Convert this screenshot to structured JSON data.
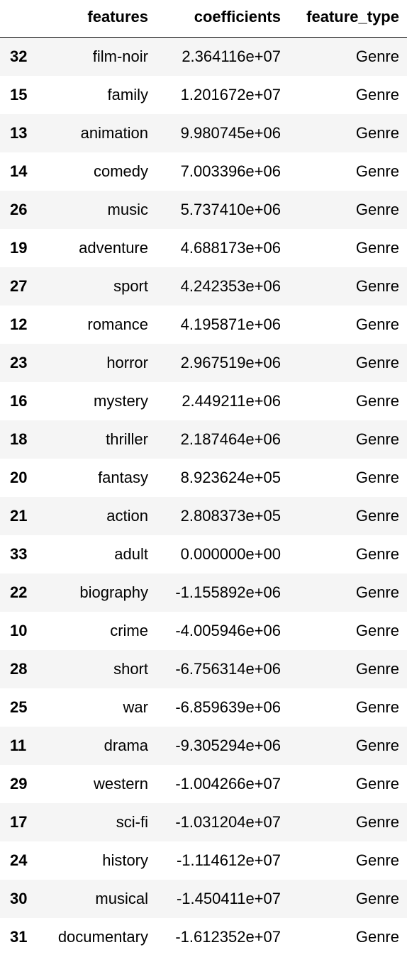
{
  "table": {
    "columns": [
      "",
      "features",
      "coefficients",
      "feature_type"
    ],
    "rows": [
      {
        "index": "32",
        "features": "film-noir",
        "coefficients": "2.364116e+07",
        "feature_type": "Genre"
      },
      {
        "index": "15",
        "features": "family",
        "coefficients": "1.201672e+07",
        "feature_type": "Genre"
      },
      {
        "index": "13",
        "features": "animation",
        "coefficients": "9.980745e+06",
        "feature_type": "Genre"
      },
      {
        "index": "14",
        "features": "comedy",
        "coefficients": "7.003396e+06",
        "feature_type": "Genre"
      },
      {
        "index": "26",
        "features": "music",
        "coefficients": "5.737410e+06",
        "feature_type": "Genre"
      },
      {
        "index": "19",
        "features": "adventure",
        "coefficients": "4.688173e+06",
        "feature_type": "Genre"
      },
      {
        "index": "27",
        "features": "sport",
        "coefficients": "4.242353e+06",
        "feature_type": "Genre"
      },
      {
        "index": "12",
        "features": "romance",
        "coefficients": "4.195871e+06",
        "feature_type": "Genre"
      },
      {
        "index": "23",
        "features": "horror",
        "coefficients": "2.967519e+06",
        "feature_type": "Genre"
      },
      {
        "index": "16",
        "features": "mystery",
        "coefficients": "2.449211e+06",
        "feature_type": "Genre"
      },
      {
        "index": "18",
        "features": "thriller",
        "coefficients": "2.187464e+06",
        "feature_type": "Genre"
      },
      {
        "index": "20",
        "features": "fantasy",
        "coefficients": "8.923624e+05",
        "feature_type": "Genre"
      },
      {
        "index": "21",
        "features": "action",
        "coefficients": "2.808373e+05",
        "feature_type": "Genre"
      },
      {
        "index": "33",
        "features": "adult",
        "coefficients": "0.000000e+00",
        "feature_type": "Genre"
      },
      {
        "index": "22",
        "features": "biography",
        "coefficients": "-1.155892e+06",
        "feature_type": "Genre"
      },
      {
        "index": "10",
        "features": "crime",
        "coefficients": "-4.005946e+06",
        "feature_type": "Genre"
      },
      {
        "index": "28",
        "features": "short",
        "coefficients": "-6.756314e+06",
        "feature_type": "Genre"
      },
      {
        "index": "25",
        "features": "war",
        "coefficients": "-6.859639e+06",
        "feature_type": "Genre"
      },
      {
        "index": "11",
        "features": "drama",
        "coefficients": "-9.305294e+06",
        "feature_type": "Genre"
      },
      {
        "index": "29",
        "features": "western",
        "coefficients": "-1.004266e+07",
        "feature_type": "Genre"
      },
      {
        "index": "17",
        "features": "sci-fi",
        "coefficients": "-1.031204e+07",
        "feature_type": "Genre"
      },
      {
        "index": "24",
        "features": "history",
        "coefficients": "-1.114612e+07",
        "feature_type": "Genre"
      },
      {
        "index": "30",
        "features": "musical",
        "coefficients": "-1.450411e+07",
        "feature_type": "Genre"
      },
      {
        "index": "31",
        "features": "documentary",
        "coefficients": "-1.612352e+07",
        "feature_type": "Genre"
      }
    ]
  },
  "colors": {
    "stripe": "#f5f5f5",
    "background": "#ffffff",
    "text": "#000000",
    "header_rule": "#000000"
  }
}
